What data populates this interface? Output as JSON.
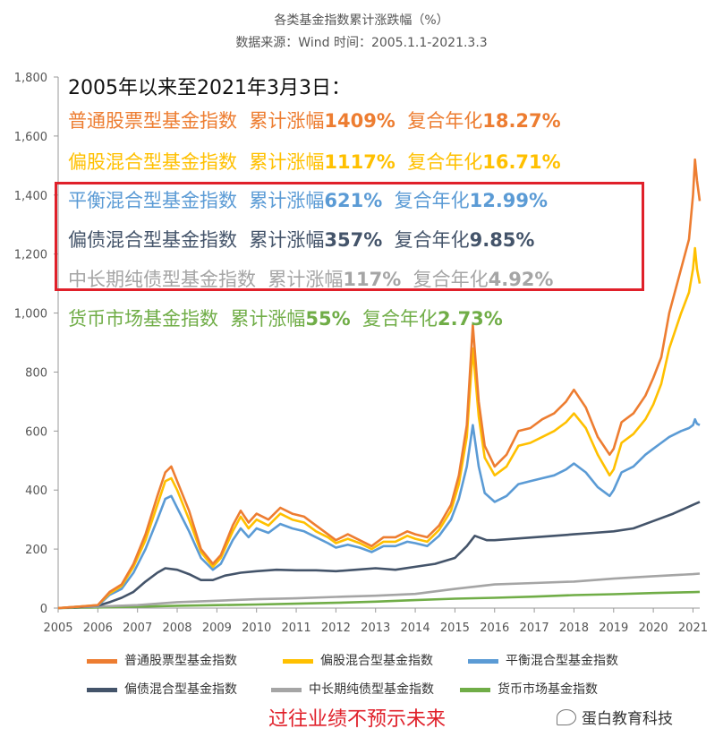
{
  "chart_data": {
    "type": "line",
    "title": "各类基金指数累计涨跌幅（%）",
    "subtitle": "数据来源：Wind 时间：2005.1.1-2021.3.3",
    "ylim": [
      0,
      1800
    ],
    "yticks": [
      "0",
      "200",
      "400",
      "600",
      "800",
      "1,000",
      "1,200",
      "1,400",
      "1,600",
      "1,800"
    ],
    "xlim": [
      2005,
      2021.17
    ],
    "xticks": [
      "2005",
      "2006",
      "2007",
      "2008",
      "2009",
      "2010",
      "2011",
      "2012",
      "2013",
      "2014",
      "2015",
      "2016",
      "2017",
      "2018",
      "2019",
      "2020",
      "2021"
    ],
    "legend_position": "bottom",
    "series": [
      {
        "name": "普通股票型基金指数",
        "color": "#ed7d31",
        "x": [
          2005,
          2005.5,
          2006,
          2006.3,
          2006.6,
          2006.9,
          2007.2,
          2007.5,
          2007.7,
          2007.85,
          2008.0,
          2008.3,
          2008.6,
          2008.9,
          2009.1,
          2009.4,
          2009.6,
          2009.8,
          2010.0,
          2010.3,
          2010.6,
          2010.9,
          2011.2,
          2011.5,
          2011.8,
          2012.0,
          2012.3,
          2012.6,
          2012.9,
          2013.2,
          2013.5,
          2013.8,
          2014.0,
          2014.3,
          2014.6,
          2014.9,
          2015.1,
          2015.3,
          2015.45,
          2015.6,
          2015.75,
          2016.0,
          2016.3,
          2016.6,
          2016.9,
          2017.2,
          2017.5,
          2017.8,
          2018.0,
          2018.3,
          2018.6,
          2018.9,
          2019.0,
          2019.2,
          2019.5,
          2019.8,
          2020.0,
          2020.2,
          2020.4,
          2020.7,
          2020.9,
          2021.0,
          2021.05,
          2021.1,
          2021.17
        ],
        "y": [
          0,
          5,
          10,
          55,
          80,
          150,
          250,
          380,
          460,
          480,
          430,
          330,
          200,
          150,
          180,
          280,
          330,
          290,
          320,
          300,
          340,
          320,
          310,
          280,
          250,
          230,
          250,
          230,
          210,
          240,
          240,
          260,
          250,
          240,
          280,
          350,
          450,
          620,
          960,
          700,
          550,
          480,
          520,
          600,
          610,
          640,
          660,
          700,
          740,
          680,
          580,
          520,
          540,
          630,
          660,
          720,
          780,
          850,
          1000,
          1150,
          1250,
          1400,
          1520,
          1450,
          1380
        ]
      },
      {
        "name": "偏股混合型基金指数",
        "color": "#ffc000",
        "x": [
          2005,
          2005.5,
          2006,
          2006.3,
          2006.6,
          2006.9,
          2007.2,
          2007.5,
          2007.7,
          2007.85,
          2008.0,
          2008.3,
          2008.6,
          2008.9,
          2009.1,
          2009.4,
          2009.6,
          2009.8,
          2010.0,
          2010.3,
          2010.6,
          2010.9,
          2011.2,
          2011.5,
          2011.8,
          2012.0,
          2012.3,
          2012.6,
          2012.9,
          2013.2,
          2013.5,
          2013.8,
          2014.0,
          2014.3,
          2014.6,
          2014.9,
          2015.1,
          2015.3,
          2015.45,
          2015.6,
          2015.75,
          2016.0,
          2016.3,
          2016.6,
          2016.9,
          2017.2,
          2017.5,
          2017.8,
          2018.0,
          2018.3,
          2018.6,
          2018.9,
          2019.0,
          2019.2,
          2019.5,
          2019.8,
          2020.0,
          2020.2,
          2020.4,
          2020.7,
          2020.9,
          2021.0,
          2021.05,
          2021.1,
          2021.17
        ],
        "y": [
          0,
          5,
          10,
          50,
          75,
          140,
          230,
          350,
          430,
          440,
          400,
          300,
          190,
          140,
          170,
          260,
          310,
          270,
          300,
          280,
          320,
          300,
          290,
          260,
          240,
          220,
          235,
          220,
          200,
          225,
          225,
          245,
          235,
          225,
          265,
          330,
          420,
          580,
          880,
          650,
          510,
          450,
          480,
          550,
          560,
          580,
          600,
          630,
          660,
          610,
          520,
          450,
          470,
          560,
          590,
          640,
          690,
          760,
          880,
          1000,
          1070,
          1150,
          1220,
          1150,
          1100
        ]
      },
      {
        "name": "平衡混合型基金指数",
        "color": "#5b9bd5",
        "x": [
          2005,
          2005.5,
          2006,
          2006.3,
          2006.6,
          2006.9,
          2007.2,
          2007.5,
          2007.7,
          2007.85,
          2008.0,
          2008.3,
          2008.6,
          2008.9,
          2009.1,
          2009.4,
          2009.6,
          2009.8,
          2010.0,
          2010.3,
          2010.6,
          2010.9,
          2011.2,
          2011.5,
          2011.8,
          2012.0,
          2012.3,
          2012.6,
          2012.9,
          2013.2,
          2013.5,
          2013.8,
          2014.0,
          2014.3,
          2014.6,
          2014.9,
          2015.1,
          2015.3,
          2015.45,
          2015.6,
          2015.75,
          2016.0,
          2016.3,
          2016.6,
          2016.9,
          2017.2,
          2017.5,
          2017.8,
          2018.0,
          2018.3,
          2018.6,
          2018.9,
          2019.0,
          2019.2,
          2019.5,
          2019.8,
          2020.0,
          2020.2,
          2020.4,
          2020.7,
          2020.9,
          2021.0,
          2021.05,
          2021.1,
          2021.17
        ],
        "y": [
          0,
          5,
          8,
          45,
          65,
          120,
          200,
          300,
          370,
          380,
          340,
          260,
          170,
          130,
          150,
          230,
          270,
          240,
          270,
          255,
          285,
          270,
          260,
          240,
          220,
          205,
          215,
          205,
          190,
          210,
          210,
          225,
          220,
          210,
          245,
          300,
          370,
          480,
          620,
          480,
          390,
          360,
          380,
          420,
          430,
          440,
          450,
          470,
          490,
          460,
          410,
          380,
          400,
          460,
          480,
          520,
          540,
          560,
          580,
          600,
          610,
          620,
          640,
          625,
          620
        ]
      },
      {
        "name": "偏债混合型基金指数",
        "color": "#44546a",
        "x": [
          2005,
          2005.5,
          2006,
          2006.3,
          2006.6,
          2006.9,
          2007.2,
          2007.5,
          2007.7,
          2008.0,
          2008.3,
          2008.6,
          2008.9,
          2009.2,
          2009.6,
          2010.0,
          2010.5,
          2011.0,
          2011.5,
          2012.0,
          2012.5,
          2013.0,
          2013.5,
          2014.0,
          2014.5,
          2015.0,
          2015.3,
          2015.5,
          2015.8,
          2016.0,
          2016.5,
          2017.0,
          2017.5,
          2018.0,
          2018.5,
          2019.0,
          2019.5,
          2020.0,
          2020.5,
          2021.0,
          2021.17
        ],
        "y": [
          0,
          3,
          8,
          20,
          35,
          55,
          90,
          120,
          135,
          130,
          115,
          95,
          95,
          110,
          120,
          125,
          130,
          128,
          128,
          125,
          130,
          135,
          130,
          140,
          150,
          170,
          210,
          245,
          230,
          230,
          235,
          240,
          245,
          250,
          255,
          260,
          270,
          295,
          320,
          350,
          360
        ]
      },
      {
        "name": "中长期纯债型基金指数",
        "color": "#a5a5a5",
        "x": [
          2005,
          2006,
          2007,
          2008,
          2009,
          2010,
          2011,
          2012,
          2013,
          2014,
          2015,
          2016,
          2017,
          2018,
          2019,
          2020,
          2021,
          2021.17
        ],
        "y": [
          0,
          5,
          10,
          20,
          25,
          30,
          33,
          38,
          42,
          48,
          65,
          80,
          85,
          90,
          100,
          108,
          115,
          117
        ]
      },
      {
        "name": "货币市场基金指数",
        "color": "#70ad47",
        "x": [
          2005,
          2006,
          2007,
          2008,
          2009,
          2010,
          2011,
          2012,
          2013,
          2014,
          2015,
          2016,
          2017,
          2018,
          2019,
          2020,
          2021,
          2021.17
        ],
        "y": [
          0,
          2,
          5,
          8,
          10,
          12,
          15,
          18,
          22,
          27,
          32,
          35,
          39,
          44,
          47,
          51,
          54,
          55
        ]
      }
    ]
  },
  "annotations": {
    "heading": "2005年以来至2021年3月3日：",
    "rows": [
      {
        "name": "普通股票型基金指数",
        "cum_label": "累计涨幅",
        "cum": "1409%",
        "ann_label": "复合年化",
        "ann": "18.27%",
        "color": "#ed7d31"
      },
      {
        "name": "偏股混合型基金指数",
        "cum_label": "累计涨幅",
        "cum": "1117%",
        "ann_label": "复合年化",
        "ann": "16.71%",
        "color": "#ffc000"
      },
      {
        "name": "平衡混合型基金指数",
        "cum_label": "累计涨幅",
        "cum": "621%",
        "ann_label": "复合年化",
        "ann": "12.99%",
        "color": "#5b9bd5"
      },
      {
        "name": "偏债混合型基金指数",
        "cum_label": "累计涨幅",
        "cum": "357%",
        "ann_label": "复合年化",
        "ann": "9.85%",
        "color": "#44546a"
      },
      {
        "name": "中长期纯债型基金指数",
        "cum_label": "累计涨幅",
        "cum": "117%",
        "ann_label": "复合年化",
        "ann": "4.92%",
        "color": "#a5a5a5"
      },
      {
        "name": "货币市场基金指数",
        "cum_label": "累计涨幅",
        "cum": "55%",
        "ann_label": "复合年化",
        "ann": "2.73%",
        "color": "#70ad47"
      }
    ]
  },
  "disclaimer": "过往业绩不预示未来",
  "watermark": "蛋白教育科技"
}
